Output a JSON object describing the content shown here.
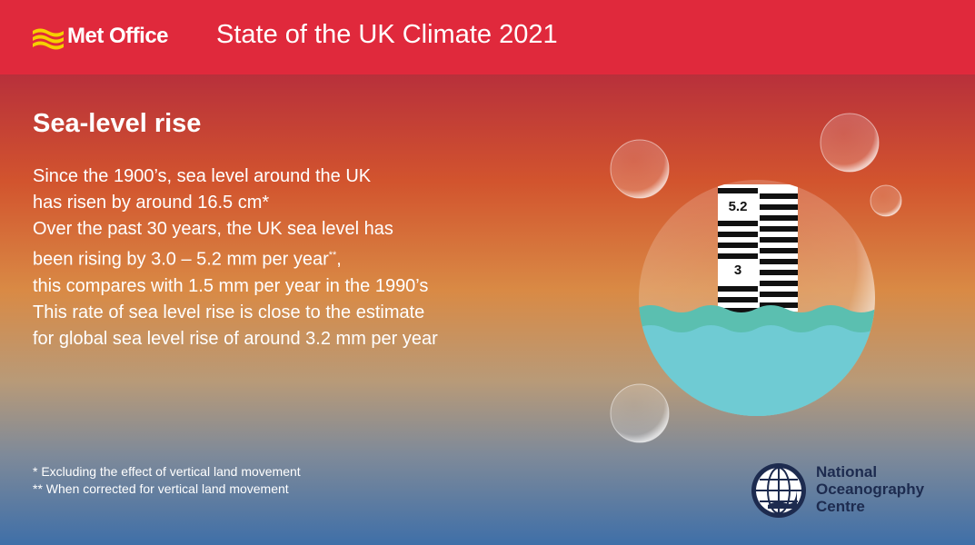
{
  "header": {
    "brand": "Met Office",
    "title": "State of the UK Climate 2021"
  },
  "heading": "Sea-level rise",
  "bullets": [
    {
      "lines": [
        "Since the 1900’s, sea level around the UK",
        "has risen by around 16.5 cm*"
      ]
    },
    {
      "lines": [
        "Over the past 30 years, the UK sea level has",
        {
          "text": "been rising by 3.0 – 5.2 mm per year",
          "sup": "**",
          "after": ","
        },
        "this compares with 1.5 mm per year in the 1990’s"
      ]
    },
    {
      "lines": [
        "This rate of sea level rise is close to the estimate",
        "for global sea level rise of around 3.2 mm per year"
      ]
    }
  ],
  "gauge": {
    "upper_label": "5.2",
    "lower_label": "3"
  },
  "footnotes": [
    "* Excluding the effect of vertical land movement",
    "** When corrected for vertical land movement"
  ],
  "partner": {
    "lines": [
      "National",
      "Oceanography",
      "Centre"
    ]
  }
}
